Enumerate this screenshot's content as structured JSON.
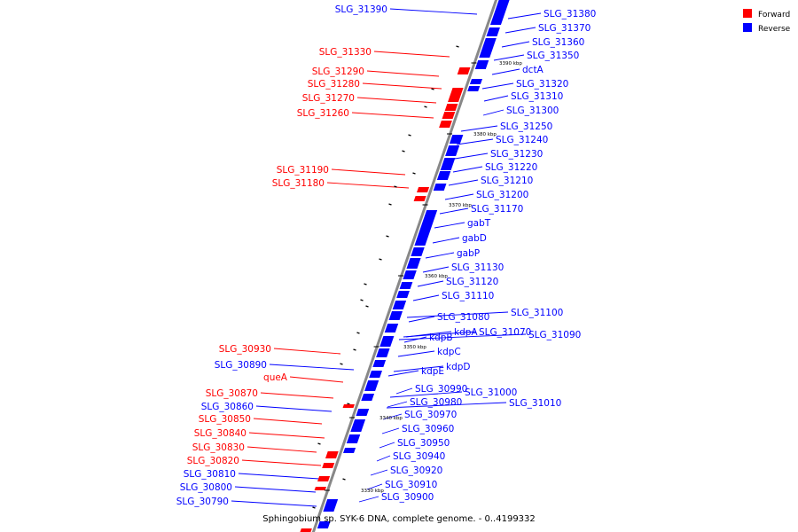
{
  "legend": {
    "forward_label": "Forward",
    "reverse_label": "Reverse",
    "forward_color": "#ff0000",
    "reverse_color": "#0000ff"
  },
  "strand_colors": {
    "forward": "#ff0000",
    "reverse": "#0000ff"
  },
  "caption": "Sphingobium sp. SYK-6 DNA, complete genome. - 0..4199332",
  "ticks": [
    "3390 kbp",
    "3380 kbp",
    "3370 kbp",
    "3360 kbp",
    "3350 kbp",
    "3340 kbp",
    "3330 kbp"
  ],
  "left_labels": [
    {
      "text": "SLG_31390",
      "strand": "reverse"
    },
    {
      "text": "SLG_31330",
      "strand": "forward"
    },
    {
      "text": "SLG_31290",
      "strand": "forward"
    },
    {
      "text": "SLG_31280",
      "strand": "forward"
    },
    {
      "text": "SLG_31270",
      "strand": "forward"
    },
    {
      "text": "SLG_31260",
      "strand": "forward"
    },
    {
      "text": "SLG_31190",
      "strand": "forward"
    },
    {
      "text": "SLG_31180",
      "strand": "forward"
    },
    {
      "text": "SLG_30930",
      "strand": "forward"
    },
    {
      "text": "SLG_30890",
      "strand": "reverse"
    },
    {
      "text": "queA",
      "strand": "forward"
    },
    {
      "text": "SLG_30870",
      "strand": "forward"
    },
    {
      "text": "SLG_30860",
      "strand": "reverse"
    },
    {
      "text": "SLG_30850",
      "strand": "forward"
    },
    {
      "text": "SLG_30840",
      "strand": "forward"
    },
    {
      "text": "SLG_30830",
      "strand": "forward"
    },
    {
      "text": "SLG_30820",
      "strand": "forward"
    },
    {
      "text": "SLG_30810",
      "strand": "reverse"
    },
    {
      "text": "SLG_30800",
      "strand": "reverse"
    },
    {
      "text": "SLG_30790",
      "strand": "reverse"
    }
  ],
  "right_labels": [
    {
      "text": "SLG_31380",
      "strand": "reverse"
    },
    {
      "text": "SLG_31370",
      "strand": "reverse"
    },
    {
      "text": "SLG_31360",
      "strand": "reverse"
    },
    {
      "text": "SLG_31350",
      "strand": "reverse"
    },
    {
      "text": "dctA",
      "strand": "reverse"
    },
    {
      "text": "SLG_31320",
      "strand": "reverse"
    },
    {
      "text": "SLG_31310",
      "strand": "reverse"
    },
    {
      "text": "SLG_31300",
      "strand": "reverse"
    },
    {
      "text": "SLG_31250",
      "strand": "reverse"
    },
    {
      "text": "SLG_31240",
      "strand": "reverse"
    },
    {
      "text": "SLG_31230",
      "strand": "reverse"
    },
    {
      "text": "SLG_31220",
      "strand": "reverse"
    },
    {
      "text": "SLG_31210",
      "strand": "reverse"
    },
    {
      "text": "SLG_31200",
      "strand": "reverse"
    },
    {
      "text": "SLG_31170",
      "strand": "reverse"
    },
    {
      "text": "gabT",
      "strand": "reverse"
    },
    {
      "text": "gabD",
      "strand": "reverse"
    },
    {
      "text": "gabP",
      "strand": "reverse"
    },
    {
      "text": "SLG_31130",
      "strand": "reverse"
    },
    {
      "text": "SLG_31120",
      "strand": "reverse"
    },
    {
      "text": "SLG_31110",
      "strand": "reverse"
    },
    {
      "text": "SLG_31100",
      "strand": "reverse"
    },
    {
      "text": "SLG_31080",
      "strand": "reverse"
    },
    {
      "text": "kdpA",
      "strand": "reverse"
    },
    {
      "text": "SLG_31070",
      "strand": "reverse"
    },
    {
      "text": "SLG_31090",
      "strand": "reverse"
    },
    {
      "text": "kdpB",
      "strand": "reverse"
    },
    {
      "text": "kdpC",
      "strand": "reverse"
    },
    {
      "text": "kdpD",
      "strand": "reverse"
    },
    {
      "text": "kdpE",
      "strand": "reverse"
    },
    {
      "text": "SLG_30990",
      "strand": "reverse"
    },
    {
      "text": "SLG_31000",
      "strand": "reverse"
    },
    {
      "text": "SLG_30980",
      "strand": "reverse"
    },
    {
      "text": "SLG_31010",
      "strand": "reverse"
    },
    {
      "text": "SLG_30970",
      "strand": "reverse"
    },
    {
      "text": "SLG_30960",
      "strand": "reverse"
    },
    {
      "text": "SLG_30950",
      "strand": "reverse"
    },
    {
      "text": "SLG_30940",
      "strand": "reverse"
    },
    {
      "text": "SLG_30920",
      "strand": "reverse"
    },
    {
      "text": "SLG_30910",
      "strand": "reverse"
    },
    {
      "text": "SLG_30900",
      "strand": "reverse"
    }
  ]
}
